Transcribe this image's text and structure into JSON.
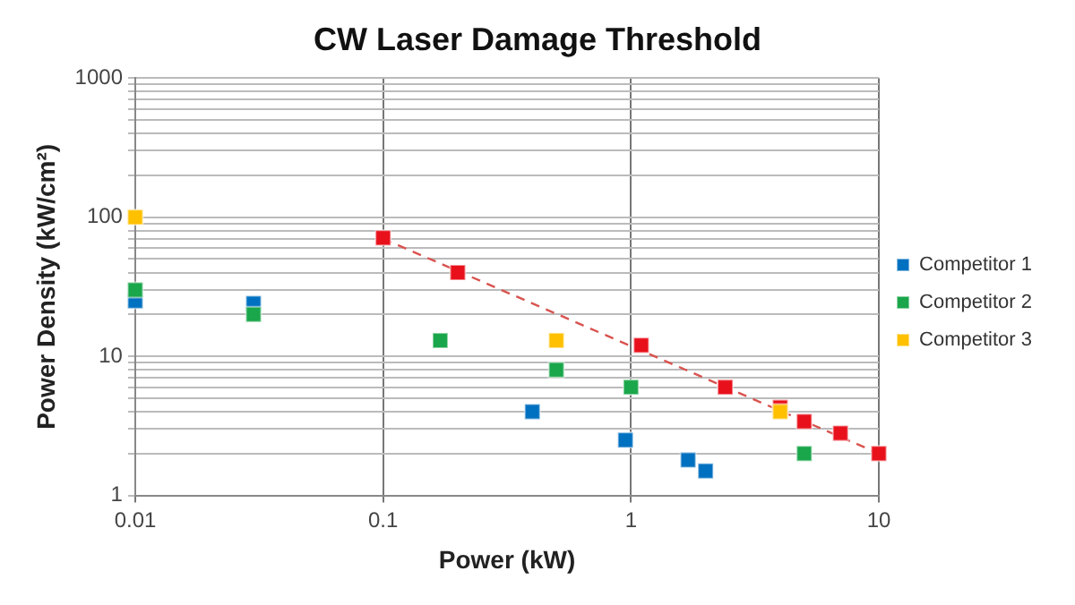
{
  "chart_data": {
    "type": "scatter",
    "title": "CW Laser Damage Threshold",
    "xlabel": "Power (kW)",
    "ylabel": "Power Density (kW/cm²)",
    "log": "xy",
    "grid": true,
    "legend": "right",
    "marker": "square",
    "xlim": [
      0.01,
      10
    ],
    "xticks": [
      0.01,
      0.1,
      1,
      10
    ],
    "ylim": [
      1,
      1000
    ],
    "yticks": [
      1,
      {
        "value": 2,
        "label": null
      },
      {
        "value": 3,
        "label": null
      },
      {
        "value": 4,
        "label": null
      },
      {
        "value": 5,
        "label": null
      },
      {
        "value": 6,
        "label": null
      },
      {
        "value": 7,
        "label": null
      },
      {
        "value": 8,
        "label": null
      },
      {
        "value": 9,
        "label": null
      },
      10,
      {
        "value": 20,
        "label": null
      },
      {
        "value": 30,
        "label": null
      },
      {
        "value": 40,
        "label": null
      },
      {
        "value": 50,
        "label": null
      },
      {
        "value": 60,
        "label": null
      },
      {
        "value": 70,
        "label": null
      },
      {
        "value": 80,
        "label": null
      },
      {
        "value": 90,
        "label": null
      },
      100,
      {
        "value": 200,
        "label": null
      },
      {
        "value": 300,
        "label": null
      },
      {
        "value": 400,
        "label": null
      },
      {
        "value": 500,
        "label": null
      },
      {
        "value": 600,
        "label": null
      },
      {
        "value": 700,
        "label": null
      },
      {
        "value": 800,
        "label": null
      },
      {
        "value": 900,
        "label": null
      },
      1000
    ],
    "series": [
      {
        "type": "line",
        "line_style": "dashed",
        "marker": "none",
        "color": "#d9534f",
        "x": [
          0.1,
          10
        ],
        "values": [
          70,
          2
        ]
      },
      {
        "color": "#e8111b",
        "x": [
          0.1,
          0.2,
          1.1,
          2.4,
          4,
          5,
          7,
          10
        ],
        "values": [
          71,
          40,
          12,
          6,
          4.3,
          3.4,
          2.8,
          2
        ]
      },
      {
        "name": "Competitor 1",
        "color": "#0070c0",
        "x": [
          0.01,
          0.03,
          0.4,
          0.95,
          1.7,
          2
        ],
        "values": [
          25,
          24,
          4,
          2.5,
          1.8,
          1.5
        ]
      },
      {
        "name": "Competitor 2",
        "color": "#1aa64a",
        "x": [
          0.01,
          0.03,
          0.17,
          0.5,
          1,
          5
        ],
        "values": [
          30,
          20,
          13,
          8,
          6,
          2
        ]
      },
      {
        "name": "Competitor 3",
        "color": "#ffc000",
        "x": [
          0.01,
          0.5,
          4
        ],
        "values": [
          100,
          13,
          4
        ]
      }
    ]
  }
}
